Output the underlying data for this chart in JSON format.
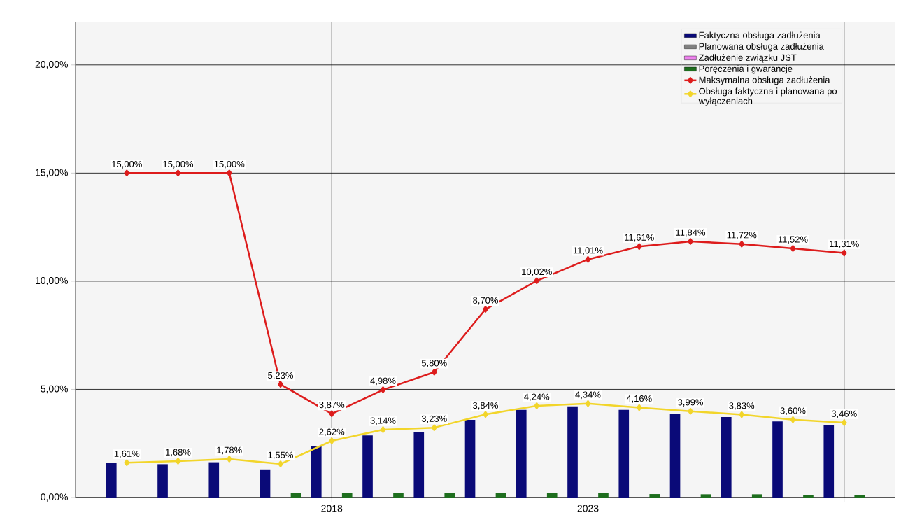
{
  "chart_data": {
    "type": "bar",
    "x": [
      2014,
      2015,
      2016,
      2017,
      2018,
      2019,
      2020,
      2021,
      2022,
      2023,
      2024,
      2025,
      2026,
      2027,
      2028
    ],
    "xlim": [
      2013,
      2029
    ],
    "xticks": [
      {
        "value": 2018,
        "label": "2018"
      },
      {
        "value": 2023,
        "label": "2023"
      },
      {
        "value": 2028,
        "label": null
      }
    ],
    "ylim": [
      0,
      22
    ],
    "yticks": [
      {
        "value": 0,
        "label": "0,00%"
      },
      {
        "value": 5,
        "label": "5,00%"
      },
      {
        "value": 10,
        "label": "10,00%"
      },
      {
        "value": 15,
        "label": "15,00%"
      },
      {
        "value": 20,
        "label": "20,00%"
      }
    ],
    "grid": true,
    "legend": "top right",
    "marker": "diamond",
    "series": [
      {
        "name": "Faktyczna obsługa zadłużenia",
        "color": "#0a0a78",
        "values": [
          1.6,
          1.54,
          1.63,
          1.3,
          2.36,
          2.87,
          3.01,
          3.59,
          4.05,
          4.21,
          4.05,
          3.87,
          3.72,
          3.52,
          3.36
        ]
      },
      {
        "name": "Planowana obsługa zadłużenia",
        "color": "#808080",
        "values": [
          null,
          null,
          null,
          null,
          null,
          null,
          null,
          null,
          null,
          null,
          null,
          null,
          null,
          null,
          null
        ]
      },
      {
        "name": "Zadłużenie związku JST",
        "color": "#ee82ee",
        "values": [
          null,
          null,
          null,
          null,
          null,
          null,
          null,
          null,
          null,
          null,
          null,
          null,
          null,
          null,
          null
        ]
      },
      {
        "name": "Poręczenia i gwarancje",
        "color": "#1e6e1e",
        "values": [
          null,
          null,
          null,
          0.2,
          0.2,
          0.2,
          0.2,
          0.2,
          0.2,
          0.2,
          0.16,
          0.15,
          0.15,
          0.12,
          0.1
        ]
      },
      {
        "name": "Maksymalna obsługa zadłużenia",
        "type": "line",
        "color": "#dd1c1c",
        "values": [
          15,
          15,
          15,
          5.23,
          3.87,
          4.98,
          5.8,
          8.7,
          10.02,
          11.01,
          11.61,
          11.84,
          11.72,
          11.52,
          11.31
        ],
        "value_labels": [
          "15,00%",
          "15,00%",
          "15,00%",
          "5,23%",
          "3,87%",
          "4,98%",
          "5,80%",
          "8,70%",
          "10,02%",
          "11,01%",
          "11,61%",
          "11,84%",
          "11,72%",
          "11,52%",
          "11,31%"
        ]
      },
      {
        "name": "Obsługa faktyczna i planowana po wyłączeniach",
        "type": "line",
        "color": "#f2d52a",
        "values": [
          1.61,
          1.68,
          1.78,
          1.55,
          2.62,
          3.14,
          3.23,
          3.84,
          4.24,
          4.34,
          4.16,
          3.99,
          3.83,
          3.6,
          3.46
        ],
        "value_labels": [
          "1,61%",
          "1,68%",
          "1,78%",
          "1,55%",
          "2,62%",
          "3,14%",
          "3,23%",
          "3,84%",
          "4,24%",
          "4,34%",
          "4,16%",
          "3,99%",
          "3,83%",
          "3,60%",
          "3,46%"
        ]
      }
    ]
  }
}
